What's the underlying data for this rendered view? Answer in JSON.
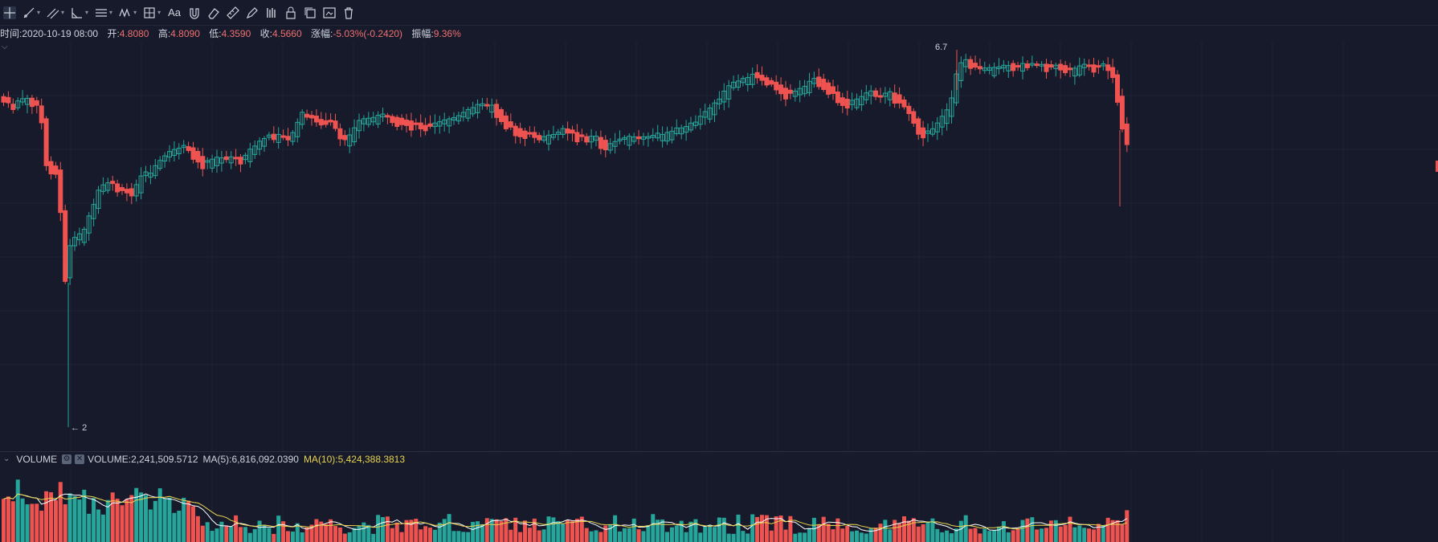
{
  "toolbar": {
    "tools": [
      {
        "name": "crosshair-tool",
        "icon": "crosshair-icon",
        "caret": false,
        "active": true
      },
      {
        "name": "trend-line-tool",
        "icon": "trend-line-icon",
        "caret": true
      },
      {
        "name": "parallel-channel-tool",
        "icon": "parallel-channel-icon",
        "caret": true
      },
      {
        "name": "angle-tool",
        "icon": "angle-icon",
        "caret": true
      },
      {
        "name": "horizontal-lines-tool",
        "icon": "horizontal-lines-icon",
        "caret": true
      },
      {
        "name": "wave-pattern-tool",
        "icon": "wave-pattern-icon",
        "caret": true
      },
      {
        "name": "rectangle-tool",
        "icon": "rectangle-icon",
        "caret": true
      },
      {
        "name": "text-tool",
        "icon": "text-icon",
        "caret": false
      },
      {
        "name": "magnet-tool",
        "icon": "magnet-icon",
        "caret": false
      },
      {
        "name": "eraser-tool",
        "icon": "eraser-icon",
        "caret": false
      },
      {
        "name": "ruler-tool",
        "icon": "ruler-icon",
        "caret": false
      },
      {
        "name": "pen-tool",
        "icon": "pen-icon",
        "caret": false
      },
      {
        "name": "measure-tool",
        "icon": "measure-icon",
        "caret": false
      },
      {
        "name": "lock-tool",
        "icon": "lock-icon",
        "caret": false
      },
      {
        "name": "copy-tool",
        "icon": "copy-icon",
        "caret": false
      },
      {
        "name": "screenshot-tool",
        "icon": "screenshot-icon",
        "caret": false
      },
      {
        "name": "delete-tool",
        "icon": "trash-icon",
        "caret": false
      }
    ],
    "text_tool_label": "Aa"
  },
  "info": {
    "time_label": "时间:",
    "time_value": "2020-10-19 08:00",
    "open_label": "开:",
    "open_value": "4.8080",
    "high_label": "高:",
    "high_value": "4.8090",
    "low_label": "低:",
    "low_value": "4.3590",
    "close_label": "收:",
    "close_value": "4.5660",
    "change_label": "涨幅:",
    "change_value": "-5.03%(-0.2420)",
    "amp_label": "振幅:",
    "amp_value": "9.36%"
  },
  "chart": {
    "high_marker": "6.7",
    "low_marker": "2",
    "colors": {
      "up": "#26a69a",
      "down": "#ef5350",
      "bg": "#161a2b",
      "grid": "#1f2436",
      "ma5": "#ffffff",
      "ma10": "#e8d44d"
    }
  },
  "volume": {
    "title": "VOLUME",
    "volume_text": "VOLUME:2,241,509.5712",
    "ma5_text": "MA(5):6,816,092.0390",
    "ma10_text": "MA(10):5,424,388.3813"
  }
}
